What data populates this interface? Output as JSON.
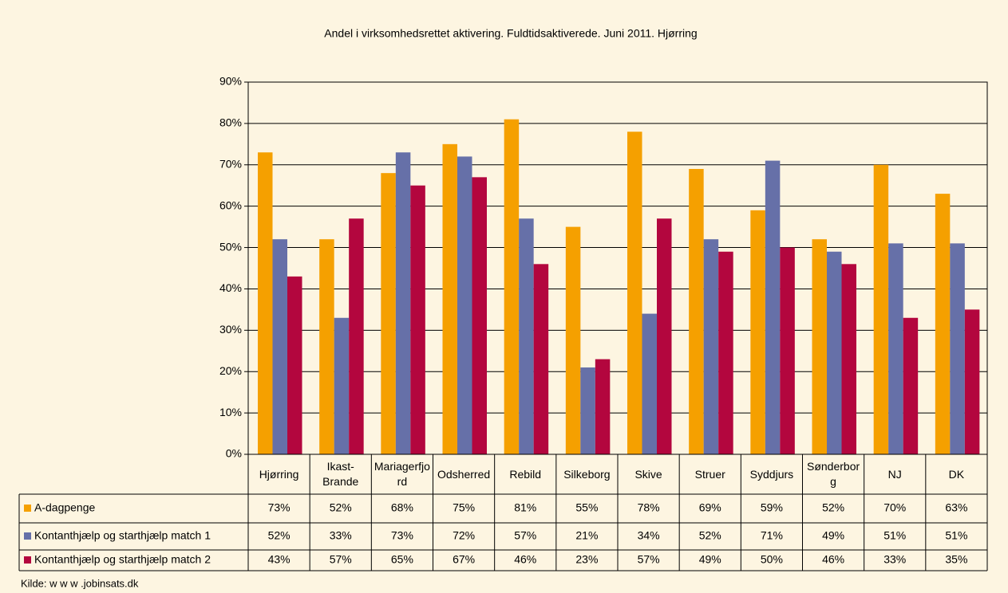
{
  "chart_data": {
    "type": "bar",
    "title": "Andel i virksomhedsrettet aktivering. Fuldtidsaktiverede. Juni 2011. Hjørring",
    "categories": [
      "Hjørring",
      "Ikast-Brande",
      "Mariagerfjord",
      "Odsherred",
      "Rebild",
      "Silkeborg",
      "Skive",
      "Struer",
      "Syddjurs",
      "Sønderborg",
      "NJ",
      "DK"
    ],
    "series": [
      {
        "name": "A-dagpenge",
        "color": "#f5a000",
        "values": [
          73,
          52,
          68,
          75,
          81,
          55,
          78,
          69,
          59,
          52,
          70,
          63
        ],
        "value_labels": [
          "73%",
          "52%",
          "68%",
          "75%",
          "81%",
          "55%",
          "78%",
          "69%",
          "59%",
          "52%",
          "70%",
          "63%"
        ]
      },
      {
        "name": "Kontanthjælp og starthjælp match 1",
        "color": "#6670a8",
        "values": [
          52,
          33,
          73,
          72,
          57,
          21,
          34,
          52,
          71,
          49,
          51,
          51
        ],
        "value_labels": [
          "52%",
          "33%",
          "73%",
          "72%",
          "57%",
          "21%",
          "34%",
          "52%",
          "71%",
          "49%",
          "51%",
          "51%"
        ]
      },
      {
        "name": "Kontanthjælp og starthjælp match 2",
        "color": "#b3063e",
        "values": [
          43,
          57,
          65,
          67,
          46,
          23,
          57,
          49,
          50,
          46,
          33,
          35
        ],
        "value_labels": [
          "43%",
          "57%",
          "65%",
          "67%",
          "46%",
          "23%",
          "57%",
          "49%",
          "50%",
          "46%",
          "33%",
          "35%"
        ]
      }
    ],
    "ylim": [
      0,
      90
    ],
    "yticks": [
      {
        "value": 0,
        "label": "0%"
      },
      {
        "value": 10,
        "label": "10%"
      },
      {
        "value": 20,
        "label": "20%"
      },
      {
        "value": 30,
        "label": "30%"
      },
      {
        "value": 40,
        "label": "40%"
      },
      {
        "value": 50,
        "label": "50%"
      },
      {
        "value": 60,
        "label": "60%"
      },
      {
        "value": 70,
        "label": "70%"
      },
      {
        "value": 80,
        "label": "80%"
      },
      {
        "value": 90,
        "label": "90%"
      }
    ],
    "grid": true,
    "source": "Kilde: w w w .jobinsats.dk"
  }
}
